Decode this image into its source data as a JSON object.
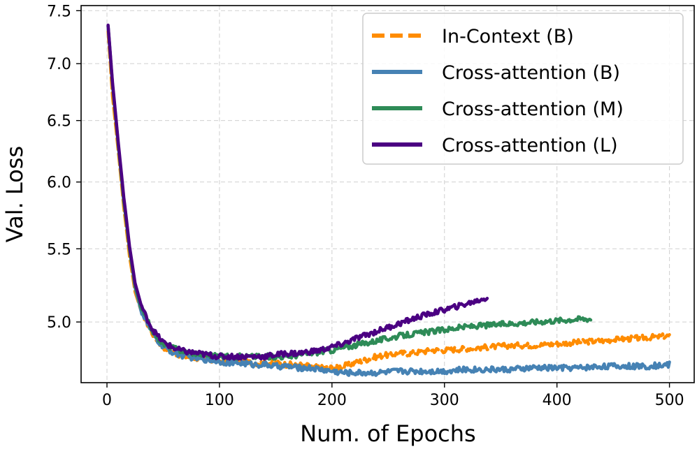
{
  "chart_data": {
    "type": "line",
    "title": "",
    "xlabel": "Num. of Epochs",
    "ylabel": "Val. Loss",
    "xlim": [
      -23,
      522
    ],
    "ylim": [
      4.62,
      7.55
    ],
    "y_scale": "log",
    "grid": true,
    "legend_position": "top-right",
    "x_ticks": [
      0,
      100,
      200,
      300,
      400,
      500
    ],
    "x_tick_labels": [
      "0",
      "100",
      "200",
      "300",
      "400",
      "500"
    ],
    "y_ticks": [
      5.0,
      5.5,
      6.0,
      6.5,
      7.0,
      7.5
    ],
    "y_tick_labels": [
      "5.0",
      "5.5",
      "6.0",
      "6.5",
      "7.0",
      "7.5"
    ],
    "series": [
      {
        "name": "In-Context (B)",
        "color": "#ff8c00",
        "dashed": true,
        "x": [
          1,
          5,
          10,
          15,
          20,
          25,
          30,
          35,
          40,
          45,
          50,
          60,
          70,
          80,
          90,
          100,
          110,
          120,
          130,
          140,
          150,
          160,
          170,
          180,
          190,
          200,
          210,
          220,
          230,
          240,
          250,
          260,
          270,
          280,
          290,
          300,
          320,
          340,
          360,
          380,
          400,
          420,
          440,
          460,
          480,
          500
        ],
        "values": [
          7.3,
          6.7,
          6.25,
          5.8,
          5.45,
          5.2,
          5.08,
          5.0,
          4.93,
          4.88,
          4.84,
          4.8,
          4.78,
          4.77,
          4.76,
          4.75,
          4.75,
          4.75,
          4.74,
          4.74,
          4.74,
          4.73,
          4.73,
          4.72,
          4.71,
          4.71,
          4.72,
          4.74,
          4.76,
          4.78,
          4.79,
          4.8,
          4.8,
          4.81,
          4.82,
          4.82,
          4.83,
          4.84,
          4.85,
          4.85,
          4.86,
          4.87,
          4.88,
          4.89,
          4.9,
          4.91
        ]
      },
      {
        "name": "Cross-attention (B)",
        "color": "#4682b4",
        "dashed": false,
        "x": [
          1,
          5,
          10,
          15,
          20,
          25,
          30,
          35,
          40,
          45,
          50,
          60,
          70,
          80,
          90,
          100,
          110,
          120,
          130,
          140,
          150,
          160,
          170,
          180,
          190,
          200,
          210,
          220,
          240,
          260,
          280,
          300,
          320,
          340,
          360,
          380,
          400,
          420,
          440,
          460,
          480,
          500
        ],
        "values": [
          7.35,
          6.8,
          6.3,
          5.85,
          5.5,
          5.23,
          5.08,
          5.0,
          4.93,
          4.88,
          4.84,
          4.8,
          4.78,
          4.77,
          4.76,
          4.75,
          4.74,
          4.74,
          4.73,
          4.73,
          4.72,
          4.72,
          4.71,
          4.71,
          4.7,
          4.69,
          4.68,
          4.68,
          4.68,
          4.69,
          4.69,
          4.69,
          4.7,
          4.7,
          4.7,
          4.71,
          4.71,
          4.71,
          4.72,
          4.72,
          4.72,
          4.73
        ]
      },
      {
        "name": "Cross-attention (M)",
        "color": "#2e8b57",
        "dashed": false,
        "x": [
          1,
          5,
          10,
          15,
          20,
          25,
          30,
          35,
          40,
          45,
          50,
          60,
          70,
          80,
          90,
          100,
          110,
          120,
          130,
          140,
          150,
          160,
          170,
          180,
          190,
          200,
          220,
          240,
          260,
          280,
          300,
          320,
          340,
          360,
          380,
          400,
          420,
          430
        ],
        "values": [
          7.35,
          6.8,
          6.3,
          5.85,
          5.5,
          5.24,
          5.1,
          5.02,
          4.95,
          4.9,
          4.86,
          4.83,
          4.81,
          4.8,
          4.79,
          4.78,
          4.78,
          4.78,
          4.78,
          4.78,
          4.78,
          4.78,
          4.79,
          4.8,
          4.81,
          4.82,
          4.85,
          4.88,
          4.91,
          4.93,
          4.95,
          4.97,
          4.98,
          4.99,
          5.0,
          5.01,
          5.02,
          5.02
        ]
      },
      {
        "name": "Cross-attention (L)",
        "color": "#4b0082",
        "dashed": false,
        "x": [
          1,
          5,
          10,
          15,
          20,
          25,
          30,
          35,
          40,
          45,
          50,
          60,
          70,
          80,
          90,
          100,
          110,
          120,
          130,
          140,
          150,
          160,
          170,
          180,
          190,
          200,
          210,
          220,
          240,
          260,
          280,
          300,
          320,
          338
        ],
        "values": [
          7.36,
          6.82,
          6.32,
          5.88,
          5.52,
          5.26,
          5.12,
          5.03,
          4.96,
          4.91,
          4.87,
          4.83,
          4.81,
          4.8,
          4.79,
          4.78,
          4.78,
          4.78,
          4.78,
          4.78,
          4.79,
          4.8,
          4.8,
          4.81,
          4.82,
          4.84,
          4.86,
          4.89,
          4.94,
          4.99,
          5.04,
          5.08,
          5.12,
          5.16
        ]
      }
    ]
  }
}
